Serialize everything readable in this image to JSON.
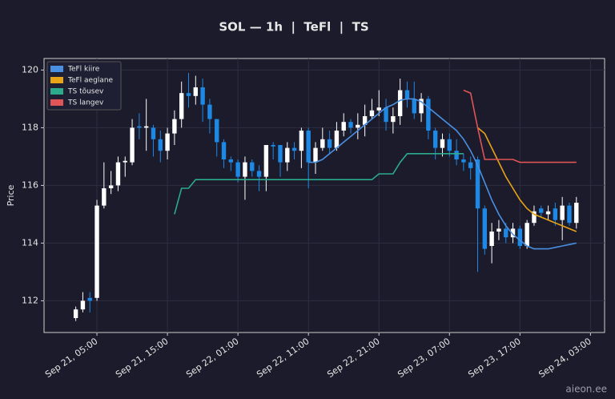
{
  "chart_data": {
    "type": "candlestick",
    "title": "SOL — 1h  |  TeFl  |  TS",
    "ylabel": "Price",
    "watermark": "aieon.ee",
    "up_color": "#ffffff",
    "down_color": "#1e88e5",
    "ylim": [
      110.9,
      120.4
    ],
    "yticks": [
      112,
      114,
      116,
      118,
      120
    ],
    "grid": true,
    "xlim": [
      "Sep 20, 21:30",
      "Sep 24, 05:00"
    ],
    "xticks": [
      "Sep 21, 05:00",
      "Sep 21, 15:00",
      "Sep 22, 01:00",
      "Sep 22, 11:00",
      "Sep 22, 21:00",
      "Sep 23, 07:00",
      "Sep 23, 17:00",
      "Sep 24, 03:00"
    ],
    "legend": "upper left",
    "x": [
      "Sep 21, 02:00",
      "Sep 21, 03:00",
      "Sep 21, 04:00",
      "Sep 21, 05:00",
      "Sep 21, 06:00",
      "Sep 21, 07:00",
      "Sep 21, 08:00",
      "Sep 21, 09:00",
      "Sep 21, 10:00",
      "Sep 21, 11:00",
      "Sep 21, 12:00",
      "Sep 21, 13:00",
      "Sep 21, 14:00",
      "Sep 21, 15:00",
      "Sep 21, 16:00",
      "Sep 21, 17:00",
      "Sep 21, 18:00",
      "Sep 21, 19:00",
      "Sep 21, 20:00",
      "Sep 21, 21:00",
      "Sep 21, 22:00",
      "Sep 21, 23:00",
      "Sep 22, 00:00",
      "Sep 22, 01:00",
      "Sep 22, 02:00",
      "Sep 22, 03:00",
      "Sep 22, 04:00",
      "Sep 22, 05:00",
      "Sep 22, 06:00",
      "Sep 22, 07:00",
      "Sep 22, 08:00",
      "Sep 22, 09:00",
      "Sep 22, 10:00",
      "Sep 22, 11:00",
      "Sep 22, 12:00",
      "Sep 22, 13:00",
      "Sep 22, 14:00",
      "Sep 22, 15:00",
      "Sep 22, 16:00",
      "Sep 22, 17:00",
      "Sep 22, 18:00",
      "Sep 22, 19:00",
      "Sep 22, 20:00",
      "Sep 22, 21:00",
      "Sep 22, 22:00",
      "Sep 22, 23:00",
      "Sep 23, 00:00",
      "Sep 23, 01:00",
      "Sep 23, 02:00",
      "Sep 23, 03:00",
      "Sep 23, 04:00",
      "Sep 23, 05:00",
      "Sep 23, 06:00",
      "Sep 23, 07:00",
      "Sep 23, 08:00",
      "Sep 23, 09:00",
      "Sep 23, 10:00",
      "Sep 23, 11:00",
      "Sep 23, 12:00",
      "Sep 23, 13:00",
      "Sep 23, 14:00",
      "Sep 23, 15:00",
      "Sep 23, 16:00",
      "Sep 23, 17:00",
      "Sep 23, 18:00",
      "Sep 23, 19:00",
      "Sep 23, 20:00",
      "Sep 23, 21:00",
      "Sep 23, 22:00",
      "Sep 23, 23:00",
      "Sep 24, 00:00",
      "Sep 24, 01:00"
    ],
    "open": [
      111.4,
      111.7,
      112.1,
      112.1,
      115.3,
      115.9,
      116.0,
      116.8,
      116.8,
      118.05,
      118.0,
      118.0,
      117.6,
      117.2,
      117.8,
      118.3,
      119.2,
      119.1,
      119.4,
      118.8,
      118.3,
      117.5,
      116.9,
      116.8,
      116.3,
      116.8,
      116.5,
      116.3,
      117.4,
      117.4,
      116.8,
      117.3,
      117.2,
      117.9,
      116.8,
      117.3,
      117.6,
      117.3,
      117.9,
      118.2,
      118.0,
      118.1,
      118.4,
      118.6,
      118.7,
      118.2,
      118.4,
      119.3,
      119.0,
      118.5,
      119.0,
      117.9,
      117.3,
      117.6,
      117.2,
      116.9,
      116.8,
      116.9,
      115.2,
      113.9,
      114.4,
      114.5,
      114.2,
      114.5,
      113.9,
      114.7,
      115.2,
      115.0,
      115.2,
      114.8,
      115.3,
      114.7
    ],
    "high": [
      111.8,
      112.3,
      112.3,
      115.5,
      116.8,
      116.5,
      117.0,
      117.0,
      118.3,
      118.5,
      119.0,
      118.1,
      117.9,
      118.0,
      118.6,
      119.6,
      119.9,
      119.8,
      119.7,
      119.0,
      118.3,
      117.6,
      117.0,
      116.9,
      117.0,
      116.9,
      116.7,
      117.4,
      117.5,
      117.4,
      117.5,
      117.5,
      118.0,
      118.0,
      117.5,
      118.0,
      117.9,
      118.2,
      118.5,
      118.3,
      118.5,
      118.8,
      119.0,
      119.3,
      119.0,
      118.7,
      119.7,
      119.6,
      119.6,
      119.2,
      119.1,
      118.0,
      117.8,
      117.8,
      117.6,
      117.1,
      117.0,
      117.0,
      115.3,
      114.7,
      114.8,
      114.7,
      114.7,
      114.6,
      114.8,
      115.3,
      115.3,
      115.3,
      115.4,
      115.6,
      115.4,
      115.6
    ],
    "low": [
      111.3,
      111.6,
      111.6,
      112.0,
      115.2,
      115.7,
      115.8,
      116.3,
      116.7,
      117.6,
      117.2,
      117.0,
      116.8,
      116.9,
      117.4,
      118.0,
      118.7,
      118.8,
      118.2,
      117.8,
      117.0,
      116.6,
      116.5,
      116.1,
      115.5,
      116.3,
      115.8,
      115.8,
      116.9,
      116.3,
      116.5,
      116.9,
      116.6,
      115.9,
      116.4,
      117.2,
      117.1,
      117.2,
      117.7,
      117.8,
      117.6,
      117.7,
      118.3,
      118.4,
      117.9,
      117.8,
      118.1,
      118.7,
      118.3,
      118.2,
      117.6,
      116.9,
      117.0,
      117.0,
      116.7,
      116.5,
      116.2,
      113.0,
      113.6,
      113.3,
      114.1,
      114.0,
      114.0,
      113.8,
      113.8,
      114.6,
      114.9,
      114.8,
      114.6,
      114.1,
      114.6,
      114.5
    ],
    "close": [
      111.7,
      112.0,
      112.0,
      115.3,
      115.9,
      116.0,
      116.8,
      116.85,
      118.0,
      118.0,
      118.05,
      117.6,
      117.2,
      117.8,
      118.3,
      119.2,
      119.1,
      119.4,
      118.8,
      118.3,
      117.5,
      116.9,
      116.8,
      116.3,
      116.8,
      116.5,
      116.3,
      117.4,
      117.35,
      116.8,
      117.3,
      117.2,
      117.9,
      116.8,
      117.3,
      117.6,
      117.3,
      117.9,
      118.2,
      118.0,
      118.1,
      118.4,
      118.6,
      118.7,
      118.2,
      118.4,
      119.3,
      119.0,
      118.5,
      119.0,
      117.9,
      117.3,
      117.6,
      117.2,
      116.9,
      116.8,
      116.6,
      115.2,
      113.8,
      114.4,
      114.5,
      114.2,
      114.5,
      113.9,
      114.7,
      115.1,
      115.05,
      115.1,
      114.8,
      115.3,
      114.7,
      115.4
    ],
    "series": [
      {
        "name": "TeFl kiire",
        "color": "#4a90e2",
        "values": [
          null,
          null,
          null,
          null,
          null,
          null,
          null,
          null,
          null,
          null,
          null,
          null,
          null,
          null,
          null,
          null,
          null,
          null,
          null,
          null,
          null,
          null,
          null,
          null,
          null,
          null,
          null,
          null,
          null,
          null,
          null,
          null,
          null,
          116.8,
          116.8,
          116.9,
          117.1,
          117.3,
          117.5,
          117.7,
          117.9,
          118.1,
          118.3,
          118.5,
          118.7,
          118.8,
          118.95,
          119.0,
          119.0,
          118.9,
          118.7,
          118.5,
          118.3,
          118.1,
          117.9,
          117.6,
          117.2,
          116.7,
          116.1,
          115.5,
          115.0,
          114.6,
          114.3,
          114.1,
          113.9,
          113.8,
          113.8,
          113.8,
          113.85,
          113.9,
          113.95,
          114.0
        ]
      },
      {
        "name": "TeFl aeglane",
        "color": "#e8a317",
        "values": [
          null,
          null,
          null,
          null,
          null,
          null,
          null,
          null,
          null,
          null,
          null,
          null,
          null,
          null,
          null,
          null,
          null,
          null,
          null,
          null,
          null,
          null,
          null,
          null,
          null,
          null,
          null,
          null,
          null,
          null,
          null,
          null,
          null,
          null,
          null,
          null,
          null,
          null,
          null,
          null,
          null,
          null,
          null,
          null,
          null,
          null,
          null,
          null,
          null,
          null,
          null,
          null,
          null,
          null,
          null,
          null,
          null,
          118.0,
          117.8,
          117.3,
          116.8,
          116.3,
          115.9,
          115.5,
          115.2,
          115.0,
          114.9,
          114.8,
          114.7,
          114.6,
          114.5,
          114.4
        ]
      },
      {
        "name": "TS tõusev",
        "color": "#2bab8c",
        "values": [
          null,
          null,
          null,
          null,
          null,
          null,
          null,
          null,
          null,
          null,
          null,
          null,
          null,
          null,
          115.0,
          115.9,
          115.9,
          116.2,
          116.2,
          116.2,
          116.2,
          116.2,
          116.2,
          116.2,
          116.2,
          116.2,
          116.2,
          116.2,
          116.2,
          116.2,
          116.2,
          116.2,
          116.2,
          116.2,
          116.2,
          116.2,
          116.2,
          116.2,
          116.2,
          116.2,
          116.2,
          116.2,
          116.2,
          116.4,
          116.4,
          116.4,
          116.8,
          117.1,
          117.1,
          117.1,
          117.1,
          117.1,
          117.1,
          117.1,
          117.1,
          117.1,
          null,
          null,
          null,
          null,
          null,
          null,
          null,
          null,
          null,
          null,
          null,
          null,
          null,
          null,
          null,
          null
        ]
      },
      {
        "name": "TS langev",
        "color": "#e05555",
        "values": [
          null,
          null,
          null,
          null,
          null,
          null,
          null,
          null,
          null,
          null,
          null,
          null,
          null,
          null,
          null,
          null,
          null,
          null,
          null,
          null,
          null,
          null,
          null,
          null,
          null,
          null,
          null,
          null,
          null,
          null,
          null,
          null,
          null,
          null,
          null,
          null,
          null,
          null,
          null,
          null,
          null,
          null,
          null,
          null,
          null,
          null,
          null,
          null,
          null,
          null,
          null,
          null,
          null,
          null,
          null,
          119.3,
          119.2,
          118.0,
          116.9,
          116.9,
          116.9,
          116.9,
          116.9,
          116.8,
          116.8,
          116.8,
          116.8,
          116.8,
          116.8,
          116.8,
          116.8,
          116.8
        ]
      }
    ]
  }
}
